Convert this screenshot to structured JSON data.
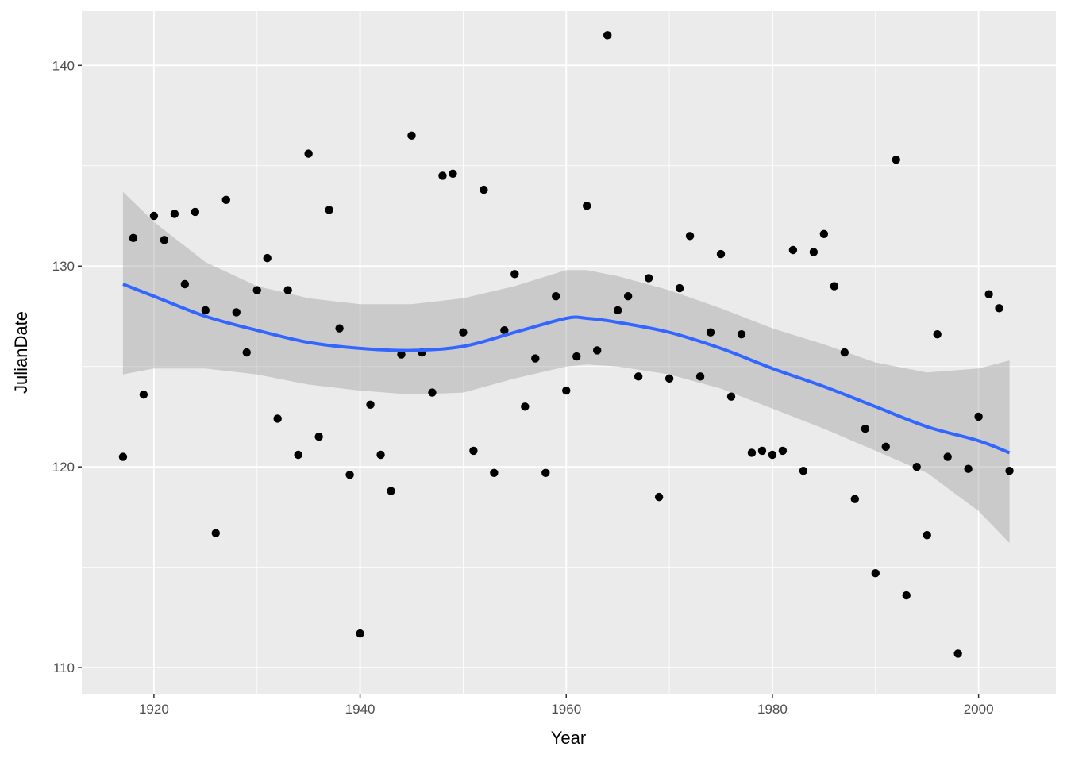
{
  "chart_data": {
    "type": "scatter",
    "xlabel": "Year",
    "ylabel": "JulianDate",
    "xlim": [
      1913,
      2007.5
    ],
    "ylim": [
      108.7,
      142.7
    ],
    "x_ticks": [
      1920,
      1940,
      1960,
      1980,
      2000
    ],
    "y_ticks": [
      110,
      120,
      130,
      140
    ],
    "x_tick_labels": [
      "1920",
      "1940",
      "1960",
      "1980",
      "2000"
    ],
    "y_tick_labels": [
      "110",
      "120",
      "130",
      "140"
    ],
    "grid": true,
    "colors": {
      "panel": "#ebebeb",
      "grid": "#ffffff",
      "points": "#000000",
      "smooth_line": "#3366ff",
      "confidence_band": "#999999"
    },
    "points": [
      {
        "x": 1917,
        "y": 120.5
      },
      {
        "x": 1918,
        "y": 131.4
      },
      {
        "x": 1919,
        "y": 123.6
      },
      {
        "x": 1920,
        "y": 132.5
      },
      {
        "x": 1921,
        "y": 131.3
      },
      {
        "x": 1922,
        "y": 132.6
      },
      {
        "x": 1923,
        "y": 129.1
      },
      {
        "x": 1924,
        "y": 132.7
      },
      {
        "x": 1925,
        "y": 127.8
      },
      {
        "x": 1926,
        "y": 116.7
      },
      {
        "x": 1927,
        "y": 133.3
      },
      {
        "x": 1928,
        "y": 127.7
      },
      {
        "x": 1929,
        "y": 125.7
      },
      {
        "x": 1930,
        "y": 128.8
      },
      {
        "x": 1931,
        "y": 130.4
      },
      {
        "x": 1932,
        "y": 122.4
      },
      {
        "x": 1933,
        "y": 128.8
      },
      {
        "x": 1934,
        "y": 120.6
      },
      {
        "x": 1935,
        "y": 135.6
      },
      {
        "x": 1936,
        "y": 121.5
      },
      {
        "x": 1937,
        "y": 132.8
      },
      {
        "x": 1938,
        "y": 126.9
      },
      {
        "x": 1939,
        "y": 119.6
      },
      {
        "x": 1940,
        "y": 111.7
      },
      {
        "x": 1941,
        "y": 123.1
      },
      {
        "x": 1942,
        "y": 120.6
      },
      {
        "x": 1943,
        "y": 118.8
      },
      {
        "x": 1944,
        "y": 125.6
      },
      {
        "x": 1945,
        "y": 136.5
      },
      {
        "x": 1946,
        "y": 125.7
      },
      {
        "x": 1947,
        "y": 123.7
      },
      {
        "x": 1948,
        "y": 134.5
      },
      {
        "x": 1949,
        "y": 134.6
      },
      {
        "x": 1950,
        "y": 126.7
      },
      {
        "x": 1951,
        "y": 120.8
      },
      {
        "x": 1952,
        "y": 133.8
      },
      {
        "x": 1953,
        "y": 119.7
      },
      {
        "x": 1954,
        "y": 126.8
      },
      {
        "x": 1955,
        "y": 129.6
      },
      {
        "x": 1956,
        "y": 123.0
      },
      {
        "x": 1957,
        "y": 125.4
      },
      {
        "x": 1958,
        "y": 119.7
      },
      {
        "x": 1959,
        "y": 128.5
      },
      {
        "x": 1960,
        "y": 123.8
      },
      {
        "x": 1961,
        "y": 125.5
      },
      {
        "x": 1962,
        "y": 133.0
      },
      {
        "x": 1963,
        "y": 125.8
      },
      {
        "x": 1964,
        "y": 141.5
      },
      {
        "x": 1965,
        "y": 127.8
      },
      {
        "x": 1966,
        "y": 128.5
      },
      {
        "x": 1967,
        "y": 124.5
      },
      {
        "x": 1968,
        "y": 129.4
      },
      {
        "x": 1969,
        "y": 118.5
      },
      {
        "x": 1970,
        "y": 124.4
      },
      {
        "x": 1971,
        "y": 128.9
      },
      {
        "x": 1972,
        "y": 131.5
      },
      {
        "x": 1973,
        "y": 124.5
      },
      {
        "x": 1974,
        "y": 126.7
      },
      {
        "x": 1975,
        "y": 130.6
      },
      {
        "x": 1976,
        "y": 123.5
      },
      {
        "x": 1977,
        "y": 126.6
      },
      {
        "x": 1978,
        "y": 120.7
      },
      {
        "x": 1979,
        "y": 120.8
      },
      {
        "x": 1980,
        "y": 120.6
      },
      {
        "x": 1981,
        "y": 120.8
      },
      {
        "x": 1982,
        "y": 130.8
      },
      {
        "x": 1983,
        "y": 119.8
      },
      {
        "x": 1984,
        "y": 130.7
      },
      {
        "x": 1985,
        "y": 131.6
      },
      {
        "x": 1986,
        "y": 129.0
      },
      {
        "x": 1987,
        "y": 125.7
      },
      {
        "x": 1988,
        "y": 118.4
      },
      {
        "x": 1989,
        "y": 121.9
      },
      {
        "x": 1990,
        "y": 114.7
      },
      {
        "x": 1991,
        "y": 121.0
      },
      {
        "x": 1992,
        "y": 135.3
      },
      {
        "x": 1993,
        "y": 113.6
      },
      {
        "x": 1994,
        "y": 120.0
      },
      {
        "x": 1995,
        "y": 116.6
      },
      {
        "x": 1996,
        "y": 126.6
      },
      {
        "x": 1997,
        "y": 120.5
      },
      {
        "x": 1998,
        "y": 110.7
      },
      {
        "x": 1999,
        "y": 119.9
      },
      {
        "x": 2000,
        "y": 122.5
      },
      {
        "x": 2001,
        "y": 128.6
      },
      {
        "x": 2002,
        "y": 127.9
      },
      {
        "x": 2003,
        "y": 119.8
      }
    ],
    "smooth": {
      "x": [
        1917,
        1920,
        1925,
        1930,
        1935,
        1940,
        1945,
        1950,
        1955,
        1960,
        1962,
        1965,
        1970,
        1975,
        1980,
        1985,
        1990,
        1995,
        2000,
        2003
      ],
      "y": [
        129.1,
        128.5,
        127.5,
        126.8,
        126.2,
        125.9,
        125.8,
        126.0,
        126.7,
        127.4,
        127.4,
        127.2,
        126.7,
        125.9,
        124.9,
        124.0,
        123.0,
        122.0,
        121.3,
        120.7
      ],
      "lower": [
        124.6,
        124.9,
        124.9,
        124.6,
        124.1,
        123.8,
        123.6,
        123.7,
        124.4,
        125.0,
        125.1,
        125.0,
        124.6,
        123.9,
        122.9,
        121.9,
        120.8,
        119.7,
        117.8,
        116.2
      ],
      "upper": [
        133.7,
        132.2,
        130.2,
        129.0,
        128.4,
        128.1,
        128.1,
        128.4,
        129.0,
        129.8,
        129.8,
        129.5,
        128.8,
        127.9,
        126.9,
        126.1,
        125.2,
        124.7,
        124.9,
        125.3
      ]
    }
  }
}
